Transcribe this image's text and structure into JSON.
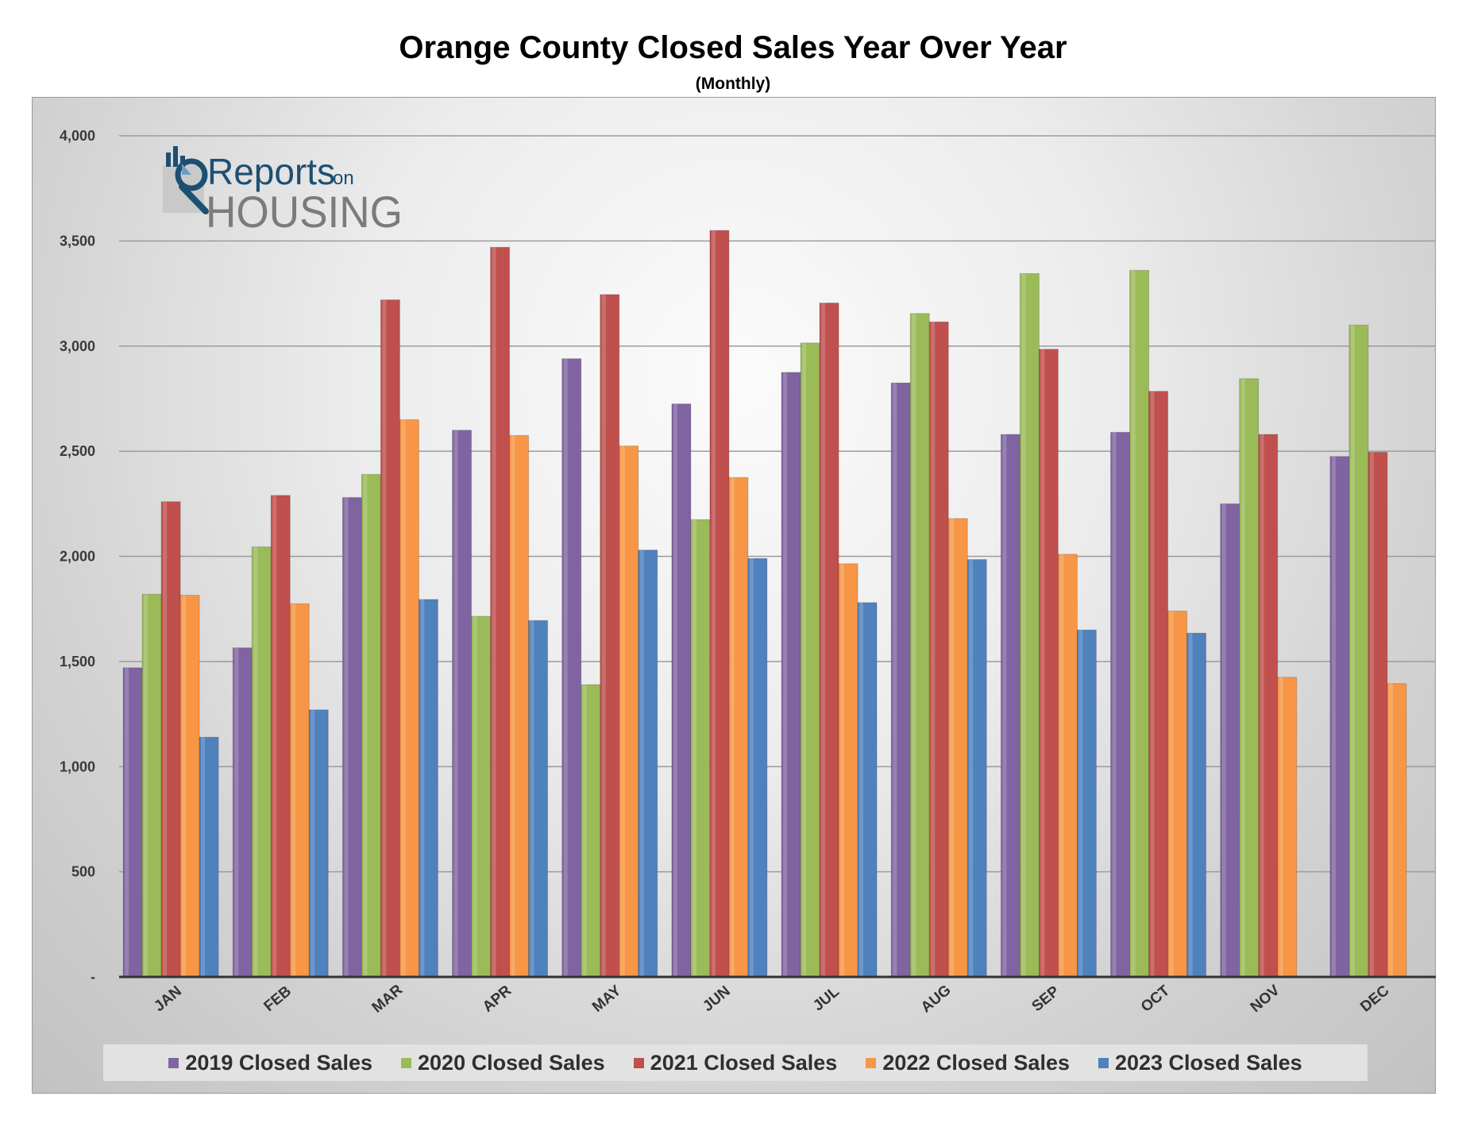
{
  "chart_data": {
    "type": "bar",
    "title": "Orange County Closed Sales Year Over Year",
    "subtitle": "(Monthly)",
    "xlabel": "",
    "ylabel": "",
    "ylim": [
      0,
      4000
    ],
    "yticks": [
      {
        "value": 0,
        "label": "-"
      },
      {
        "value": 500,
        "label": "500"
      },
      {
        "value": 1000,
        "label": "1,000"
      },
      {
        "value": 1500,
        "label": "1,500"
      },
      {
        "value": 2000,
        "label": "2,000"
      },
      {
        "value": 2500,
        "label": "2,500"
      },
      {
        "value": 3000,
        "label": "3,000"
      },
      {
        "value": 3500,
        "label": "3,500"
      },
      {
        "value": 4000,
        "label": "4,000"
      }
    ],
    "grid": true,
    "legend_position": "bottom",
    "categories": [
      "JAN",
      "FEB",
      "MAR",
      "APR",
      "MAY",
      "JUN",
      "JUL",
      "AUG",
      "SEP",
      "OCT",
      "NOV",
      "DEC"
    ],
    "series": [
      {
        "name": "2019 Closed Sales",
        "color": "#8064a2",
        "values": [
          1470,
          1565,
          2280,
          2600,
          2940,
          2725,
          2875,
          2825,
          2580,
          2590,
          2250,
          2475
        ]
      },
      {
        "name": "2020 Closed Sales",
        "color": "#9bbb59",
        "values": [
          1820,
          2045,
          2390,
          1715,
          1390,
          2175,
          3015,
          3155,
          3345,
          3360,
          2845,
          3100
        ]
      },
      {
        "name": "2021 Closed Sales",
        "color": "#c0504d",
        "values": [
          2260,
          2290,
          3220,
          3470,
          3245,
          3550,
          3205,
          3115,
          2985,
          2785,
          2580,
          2495
        ]
      },
      {
        "name": "2022 Closed Sales",
        "color": "#f79646",
        "values": [
          1815,
          1775,
          2650,
          2575,
          2525,
          2375,
          1965,
          2180,
          2010,
          1740,
          1425,
          1395
        ]
      },
      {
        "name": "2023 Closed Sales",
        "color": "#4f81bd",
        "values": [
          1140,
          1270,
          1795,
          1695,
          2030,
          1990,
          1780,
          1985,
          1650,
          1635,
          null,
          null
        ]
      }
    ]
  },
  "logo": {
    "line1": "Reports",
    "line1_small": "on",
    "line2": "HOUSING"
  }
}
